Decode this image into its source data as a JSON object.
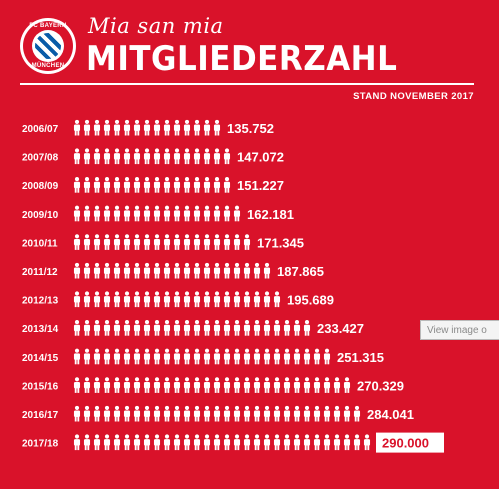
{
  "header": {
    "logo_text_top": "FC BAYERN",
    "logo_text_bottom": "MÜNCHEN",
    "slogan": "Mia san mia",
    "title": "MITGLIEDERZAHL",
    "stand": "STAND NOVEMBER 2017"
  },
  "colors": {
    "background": "#d9122a",
    "figure": "#ffffff",
    "highlight_box": "#ffffff",
    "highlight_text": "#d9122a"
  },
  "chart_data": {
    "type": "bar",
    "orientation": "horizontal",
    "pictogram": "person-icon",
    "categories": [
      "2006/07",
      "2007/08",
      "2008/09",
      "2009/10",
      "2010/11",
      "2011/12",
      "2012/13",
      "2013/14",
      "2014/15",
      "2015/16",
      "2016/17",
      "2017/18"
    ],
    "values": [
      135752,
      147072,
      151227,
      162181,
      171345,
      187865,
      195689,
      233427,
      251315,
      270329,
      284041,
      290000
    ],
    "value_labels": [
      "135.752",
      "147.072",
      "151.227",
      "162.181",
      "171.345",
      "187.865",
      "195.689",
      "233.427",
      "251.315",
      "270.329",
      "284.041",
      "290.000"
    ],
    "highlighted_category": "2017/18",
    "title": "MITGLIEDERZAHL"
  },
  "tooltip": {
    "text": "View image o"
  }
}
